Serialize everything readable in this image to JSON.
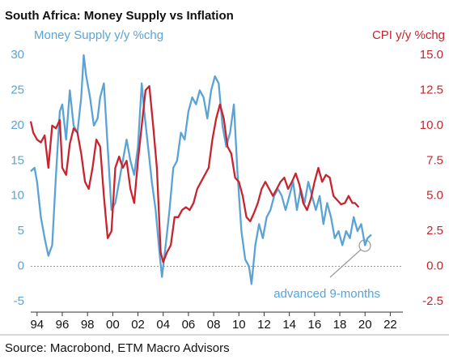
{
  "chart_data": {
    "type": "line",
    "title": "South Africa: Money Supply vs Inflation",
    "ylabel": "Money Supply y/y %chg",
    "y2label": "CPI y/y %chg",
    "annotation": "advanced 9-months",
    "source": "Source: Macrobond, ETM Macro Advisors",
    "xlim": [
      1993.5,
      2023
    ],
    "xticks": [
      {
        "value": 1994,
        "label": "94"
      },
      {
        "value": 1996,
        "label": "96"
      },
      {
        "value": 1998,
        "label": "98"
      },
      {
        "value": 2000,
        "label": "00"
      },
      {
        "value": 2002,
        "label": "02"
      },
      {
        "value": 2004,
        "label": "04"
      },
      {
        "value": 2006,
        "label": "06"
      },
      {
        "value": 2008,
        "label": "08"
      },
      {
        "value": 2010,
        "label": "10"
      },
      {
        "value": 2012,
        "label": "12"
      },
      {
        "value": 2014,
        "label": "14"
      },
      {
        "value": 2016,
        "label": "16"
      },
      {
        "value": 2018,
        "label": "18"
      },
      {
        "value": 2020,
        "label": "20"
      },
      {
        "value": 2022,
        "label": "22"
      }
    ],
    "ylim": [
      -6.5,
      31.5
    ],
    "yticks": [
      -5,
      0,
      5,
      10,
      15,
      20,
      25,
      30
    ],
    "y2lim": [
      -3.25,
      15.75
    ],
    "y2ticks": [
      -2.5,
      {
        "value": 0,
        "label": "0.0"
      },
      2.5,
      {
        "value": 5,
        "label": "5.0"
      },
      7.5,
      {
        "value": 10,
        "label": "10.0"
      },
      12.5,
      {
        "value": 15,
        "label": "15.0"
      }
    ],
    "series": [
      {
        "name": "Money Supply y/y %chg",
        "color": "#5ba3d4",
        "axis": "y",
        "x": [
          1993.5,
          1993.8,
          1994.0,
          1994.3,
          1994.6,
          1994.9,
          1995.2,
          1995.5,
          1995.8,
          1996.0,
          1996.3,
          1996.6,
          1996.9,
          1997.2,
          1997.5,
          1997.7,
          1997.9,
          1998.2,
          1998.5,
          1998.8,
          1999.0,
          1999.3,
          1999.6,
          1999.9,
          2000.2,
          2000.5,
          2000.8,
          2001.1,
          2001.4,
          2001.7,
          2002.0,
          2002.3,
          2002.5,
          2002.8,
          2003.1,
          2003.4,
          2003.7,
          2003.9,
          2004.2,
          2004.5,
          2004.8,
          2005.1,
          2005.4,
          2005.7,
          2006.0,
          2006.3,
          2006.6,
          2006.9,
          2007.2,
          2007.5,
          2007.8,
          2008.1,
          2008.4,
          2008.7,
          2009.0,
          2009.3,
          2009.6,
          2009.9,
          2010.2,
          2010.5,
          2010.8,
          2011.0,
          2011.3,
          2011.6,
          2011.9,
          2012.2,
          2012.5,
          2012.8,
          2013.1,
          2013.4,
          2013.7,
          2014.0,
          2014.3,
          2014.6,
          2014.9,
          2015.2,
          2015.5,
          2015.8,
          2016.1,
          2016.4,
          2016.7,
          2017.0,
          2017.3,
          2017.6,
          2017.9,
          2018.2,
          2018.5,
          2018.8,
          2019.1,
          2019.4,
          2019.7,
          2020.0,
          2020.2,
          2020.5
        ],
        "values": [
          13.5,
          14,
          12,
          7,
          4,
          1.5,
          3,
          13,
          22,
          23,
          18,
          25,
          20,
          19,
          24,
          30,
          27,
          24,
          20,
          21,
          24,
          26,
          17,
          8,
          9,
          12,
          15,
          18,
          15,
          13,
          17,
          26,
          22,
          17,
          12,
          8,
          2,
          -1.5,
          3,
          8,
          14,
          15,
          19,
          18,
          22,
          24,
          23,
          25,
          24,
          21,
          25,
          27,
          26,
          20,
          17,
          19,
          23,
          13,
          5,
          1,
          0,
          -2.5,
          3,
          6,
          4,
          7,
          8,
          10,
          11,
          10,
          8,
          10,
          12,
          8,
          11,
          9,
          12,
          10,
          8,
          10,
          6,
          9,
          7,
          4,
          5,
          3,
          5,
          4,
          7,
          5,
          6,
          3,
          4,
          4.5
        ]
      },
      {
        "name": "CPI y/y %chg",
        "color": "#c8242f",
        "axis": "y2",
        "x": [
          1993.5,
          1993.7,
          1994.0,
          1994.3,
          1994.6,
          1994.9,
          1995.2,
          1995.5,
          1995.8,
          1996.0,
          1996.3,
          1996.6,
          1996.9,
          1997.2,
          1997.5,
          1997.8,
          1998.1,
          1998.4,
          1998.7,
          1999.0,
          1999.3,
          1999.6,
          1999.9,
          2000.2,
          2000.5,
          2000.8,
          2001.1,
          2001.4,
          2001.7,
          2002.0,
          2002.3,
          2002.6,
          2002.9,
          2003.2,
          2003.5,
          2003.8,
          2004.0,
          2004.3,
          2004.6,
          2004.9,
          2005.2,
          2005.5,
          2005.8,
          2006.1,
          2006.4,
          2006.7,
          2007.0,
          2007.3,
          2007.6,
          2007.9,
          2008.2,
          2008.5,
          2008.8,
          2009.1,
          2009.4,
          2009.7,
          2010.0,
          2010.3,
          2010.6,
          2010.9,
          2011.2,
          2011.5,
          2011.8,
          2012.1,
          2012.4,
          2012.7,
          2013.0,
          2013.3,
          2013.6,
          2013.9,
          2014.2,
          2014.5,
          2014.8,
          2015.1,
          2015.4,
          2015.7,
          2016.0,
          2016.3,
          2016.6,
          2016.9,
          2017.2,
          2017.5,
          2017.8,
          2018.1,
          2018.4,
          2018.7,
          2019.0,
          2019.2,
          2019.5
        ],
        "values": [
          10.3,
          9.5,
          9.0,
          8.8,
          9.3,
          7.0,
          10.0,
          9.8,
          10.4,
          7.0,
          6.5,
          8.7,
          9.8,
          9.5,
          8.0,
          6.0,
          5.5,
          7.0,
          9.0,
          8.5,
          5.0,
          2.0,
          2.5,
          7.0,
          7.8,
          7.0,
          7.5,
          5.5,
          4.5,
          7.5,
          10.0,
          12.5,
          12.8,
          10.0,
          7.0,
          1.0,
          0.3,
          1.0,
          1.5,
          3.5,
          3.5,
          4.0,
          4.2,
          4.0,
          4.5,
          5.5,
          6.0,
          6.5,
          7.0,
          9.0,
          10.5,
          11.5,
          10.5,
          8.5,
          8.0,
          6.3,
          6.0,
          5.0,
          3.5,
          3.2,
          3.8,
          4.5,
          5.5,
          6.0,
          5.5,
          5.0,
          5.5,
          6.0,
          6.3,
          5.5,
          6.0,
          6.6,
          5.8,
          4.5,
          4.0,
          4.8,
          6.0,
          7.0,
          6.0,
          6.5,
          6.3,
          5.0,
          4.7,
          4.4,
          4.5,
          5.0,
          4.5,
          4.5,
          4.2
        ]
      }
    ]
  }
}
